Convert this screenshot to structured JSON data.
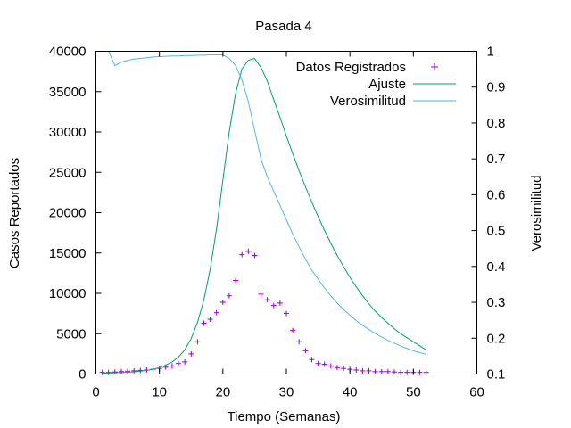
{
  "chart_data": {
    "type": "line",
    "title": "Pasada 4",
    "xlabel": "Tiempo (Semanas)",
    "ylabel": "Casos Reportados",
    "y2label": "Verosimilitud",
    "xlim": [
      0,
      60
    ],
    "ylim": [
      0,
      40000
    ],
    "y2lim": [
      0.1,
      1.0
    ],
    "xticks": [
      "0",
      "10",
      "20",
      "30",
      "40",
      "50",
      "60"
    ],
    "yticks": [
      "0",
      "5000",
      "10000",
      "15000",
      "20000",
      "25000",
      "30000",
      "35000",
      "40000"
    ],
    "y2ticks": [
      "0.1",
      "0.2",
      "0.3",
      "0.4",
      "0.5",
      "0.6",
      "0.7",
      "0.8",
      "0.9",
      "1"
    ],
    "grid": false,
    "legend_position": "top-right",
    "series": [
      {
        "name": "Datos Registrados",
        "style": "points",
        "marker": "+",
        "axis": "y",
        "color": "#9400d3",
        "x": [
          1,
          2,
          3,
          4,
          5,
          6,
          7,
          8,
          9,
          10,
          11,
          12,
          13,
          14,
          15,
          16,
          17,
          18,
          19,
          20,
          21,
          22,
          23,
          24,
          25,
          26,
          27,
          28,
          29,
          30,
          31,
          32,
          33,
          34,
          35,
          36,
          37,
          38,
          39,
          40,
          41,
          42,
          43,
          44,
          45,
          46,
          47,
          48,
          49,
          50,
          51,
          52
        ],
        "y": [
          200,
          200,
          250,
          300,
          350,
          400,
          450,
          500,
          600,
          700,
          850,
          1000,
          1300,
          1500,
          2500,
          4000,
          6300,
          6800,
          7600,
          8900,
          9700,
          11600,
          14800,
          15200,
          14700,
          9900,
          9200,
          8500,
          8800,
          7500,
          5400,
          4000,
          2900,
          1800,
          1300,
          1200,
          1000,
          800,
          700,
          600,
          500,
          400,
          400,
          300,
          300,
          300,
          250,
          200,
          200,
          200,
          200,
          200
        ]
      },
      {
        "name": "Ajuste",
        "style": "line",
        "axis": "y",
        "color": "#009e73",
        "x": [
          1,
          2,
          3,
          4,
          5,
          6,
          7,
          8,
          9,
          10,
          11,
          12,
          13,
          14,
          15,
          16,
          17,
          18,
          19,
          20,
          21,
          22,
          23,
          24,
          25,
          26,
          27,
          28,
          29,
          30,
          31,
          32,
          33,
          34,
          35,
          36,
          37,
          38,
          39,
          40,
          41,
          42,
          43,
          44,
          45,
          46,
          47,
          48,
          49,
          50,
          51,
          52
        ],
        "y": [
          100,
          120,
          150,
          180,
          220,
          280,
          350,
          450,
          600,
          800,
          1100,
          1500,
          2100,
          3000,
          4400,
          6400,
          9200,
          13000,
          18000,
          24000,
          30000,
          34800,
          37800,
          38900,
          39100,
          38000,
          36300,
          34000,
          31800,
          29500,
          27300,
          25200,
          23200,
          21300,
          19500,
          17800,
          16200,
          14700,
          13300,
          12000,
          10800,
          9700,
          8700,
          7800,
          7000,
          6300,
          5600,
          5000,
          4500,
          4000,
          3500,
          3000
        ]
      },
      {
        "name": "Verosimilitud",
        "style": "line",
        "axis": "y2",
        "color": "#56b4e9",
        "x": [
          1,
          2,
          3,
          4,
          5,
          6,
          7,
          8,
          9,
          10,
          11,
          12,
          13,
          14,
          15,
          16,
          17,
          18,
          19,
          20,
          21,
          22,
          23,
          24,
          25,
          26,
          27,
          28,
          29,
          30,
          31,
          32,
          33,
          34,
          35,
          36,
          37,
          38,
          39,
          40,
          41,
          42,
          43,
          44,
          45,
          46,
          47,
          48,
          49,
          50,
          51,
          52
        ],
        "y": [
          1.0,
          1.0,
          0.96,
          0.97,
          0.975,
          0.978,
          0.98,
          0.982,
          0.984,
          0.985,
          0.986,
          0.987,
          0.987,
          0.988,
          0.988,
          0.989,
          0.989,
          0.99,
          0.99,
          0.99,
          0.98,
          0.96,
          0.92,
          0.86,
          0.78,
          0.7,
          0.65,
          0.61,
          0.57,
          0.53,
          0.49,
          0.455,
          0.42,
          0.39,
          0.365,
          0.34,
          0.318,
          0.298,
          0.28,
          0.264,
          0.249,
          0.236,
          0.224,
          0.213,
          0.203,
          0.194,
          0.186,
          0.178,
          0.171,
          0.165,
          0.16,
          0.155
        ]
      }
    ]
  }
}
